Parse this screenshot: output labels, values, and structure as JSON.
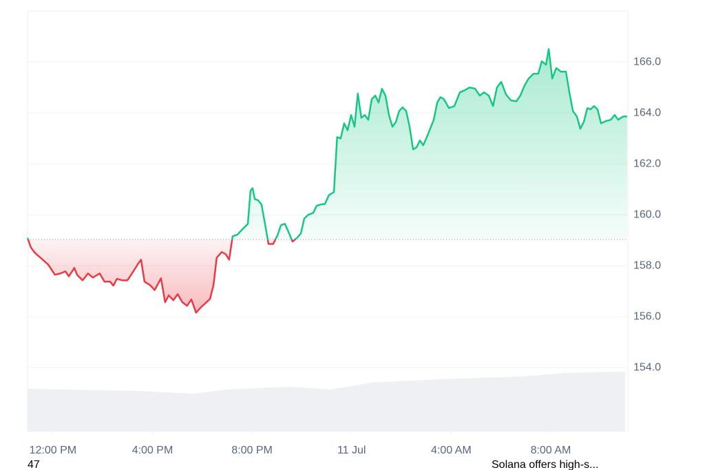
{
  "chart_data": {
    "type": "line",
    "x": [
      10.98,
      11.11,
      11.25,
      11.39,
      11.59,
      11.81,
      12.08,
      12.3,
      12.5,
      12.64,
      12.86,
      12.97,
      13.19,
      13.41,
      13.6,
      13.88,
      14.07,
      14.3,
      14.43,
      14.57,
      14.79,
      14.99,
      15.18,
      15.4,
      15.54,
      15.68,
      15.9,
      16.09,
      16.34,
      16.51,
      16.65,
      16.84,
      17.01,
      17.2,
      17.39,
      17.56,
      17.75,
      17.95,
      18.17,
      18.31,
      18.45,
      18.58,
      18.78,
      18.94,
      19.08,
      19.22,
      19.41,
      19.61,
      19.83,
      19.94,
      20.02,
      20.11,
      20.24,
      20.38,
      20.52,
      20.66,
      20.85,
      21.02,
      21.16,
      21.32,
      21.49,
      21.63,
      21.82,
      21.96,
      22.1,
      22.26,
      22.46,
      22.59,
      22.76,
      22.93,
      23.09,
      23.29,
      23.42,
      23.56,
      23.7,
      23.84,
      23.98,
      24.12,
      24.25,
      24.39,
      24.53,
      24.67,
      24.81,
      24.95,
      25.08,
      25.22,
      25.36,
      25.5,
      25.64,
      25.78,
      25.91,
      26.05,
      26.19,
      26.33,
      26.47,
      26.61,
      26.74,
      26.88,
      27.08,
      27.3,
      27.44,
      27.57,
      27.71,
      27.91,
      28.13,
      28.35,
      28.54,
      28.74,
      28.96,
      29.15,
      29.32,
      29.51,
      29.68,
      29.84,
      30.01,
      30.2,
      30.4,
      30.62,
      30.78,
      30.95,
      31.11,
      31.31,
      31.5,
      31.64,
      31.81,
      31.92,
      32.06,
      32.22,
      32.41,
      32.61,
      32.75,
      32.89,
      33.05,
      33.19,
      33.33,
      33.47,
      33.6,
      33.74,
      33.88,
      34.02,
      34.21,
      34.41,
      34.57,
      34.71,
      34.91,
      35.07
    ],
    "values": [
      159.1,
      158.73,
      158.54,
      158.41,
      158.24,
      158.05,
      157.65,
      157.7,
      157.78,
      157.59,
      157.92,
      157.65,
      157.43,
      157.7,
      157.54,
      157.7,
      157.38,
      157.38,
      157.22,
      157.49,
      157.43,
      157.43,
      157.7,
      158.05,
      158.24,
      157.38,
      157.24,
      157.05,
      157.51,
      156.57,
      156.84,
      156.65,
      156.89,
      156.57,
      156.43,
      156.68,
      156.16,
      156.38,
      156.57,
      156.7,
      157.24,
      158.32,
      158.54,
      158.46,
      158.24,
      159.16,
      159.22,
      159.43,
      159.65,
      160.95,
      161.05,
      160.62,
      160.57,
      160.41,
      159.65,
      158.86,
      158.86,
      159.19,
      159.59,
      159.65,
      159.27,
      158.95,
      159.11,
      159.27,
      159.86,
      160.0,
      160.08,
      160.35,
      160.41,
      160.43,
      160.78,
      160.89,
      163.05,
      163.0,
      163.59,
      163.32,
      163.92,
      163.46,
      164.76,
      163.81,
      163.92,
      163.73,
      164.54,
      164.68,
      164.41,
      164.95,
      164.68,
      163.92,
      163.46,
      163.65,
      164.08,
      164.22,
      164.08,
      163.46,
      162.57,
      162.65,
      162.92,
      162.73,
      163.19,
      163.73,
      164.41,
      164.62,
      164.54,
      164.19,
      164.27,
      164.81,
      164.89,
      165.0,
      164.95,
      164.68,
      164.81,
      164.68,
      164.27,
      165.0,
      165.22,
      164.73,
      164.49,
      164.46,
      164.68,
      165.08,
      165.35,
      165.54,
      165.54,
      166.03,
      165.89,
      166.51,
      165.35,
      165.76,
      165.62,
      165.62,
      164.81,
      164.08,
      163.86,
      163.38,
      163.65,
      164.19,
      164.14,
      164.27,
      164.14,
      163.59,
      163.68,
      163.73,
      163.92,
      163.73,
      163.86,
      163.86
    ],
    "baseline": 159.03,
    "color_up": "#16c784",
    "color_down": "#ea3943",
    "xlim": [
      10.98,
      35.1
    ],
    "xticks": [
      {
        "value": 12,
        "label": "12:00 PM"
      },
      {
        "value": 16,
        "label": "4:00 PM"
      },
      {
        "value": 20,
        "label": "8:00 PM"
      },
      {
        "value": 24,
        "label": "11 Jul"
      },
      {
        "value": 28,
        "label": "4:00 AM"
      },
      {
        "value": 32,
        "label": "8:00 AM"
      }
    ],
    "ylim": [
      151.5,
      168.0
    ],
    "yticks": [
      {
        "value": 154,
        "label": "154.0"
      },
      {
        "value": 156,
        "label": "156.0"
      },
      {
        "value": 158,
        "label": "158.0"
      },
      {
        "value": 160,
        "label": "160.0"
      },
      {
        "value": 162,
        "label": "162.0"
      },
      {
        "value": 164,
        "label": "164.0"
      },
      {
        "value": 166,
        "label": "166.0"
      }
    ],
    "grid": true
  },
  "footer": {
    "left": "47",
    "right": "Solana offers high-s..."
  }
}
